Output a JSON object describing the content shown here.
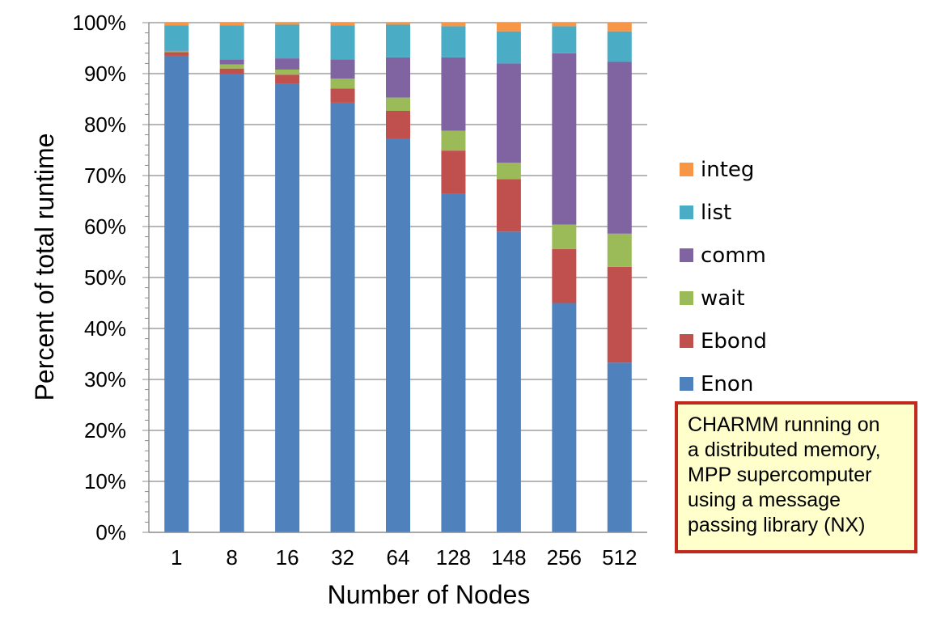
{
  "chart_data": {
    "type": "bar",
    "stacked": true,
    "xlabel": "Number of Nodes",
    "ylabel": "Percent of total runtime",
    "ylim": [
      0,
      100
    ],
    "yticks": [
      "0%",
      "10%",
      "20%",
      "30%",
      "40%",
      "50%",
      "60%",
      "70%",
      "80%",
      "90%",
      "100%"
    ],
    "categories": [
      "1",
      "8",
      "16",
      "32",
      "64",
      "128",
      "148",
      "256",
      "512"
    ],
    "series": [
      {
        "name": "Enon",
        "color": "#4f81bd",
        "values": [
          93.5,
          90.0,
          88.0,
          84.3,
          77.3,
          66.5,
          59.0,
          45.0,
          33.3
        ]
      },
      {
        "name": "Ebond",
        "color": "#c0504d",
        "values": [
          0.7,
          1.0,
          1.8,
          2.8,
          5.4,
          8.4,
          10.3,
          10.6,
          18.8
        ]
      },
      {
        "name": "wait",
        "color": "#9bbb59",
        "values": [
          0.2,
          0.8,
          1.0,
          1.9,
          2.6,
          3.9,
          3.2,
          4.8,
          6.5
        ]
      },
      {
        "name": "comm",
        "color": "#8064a2",
        "values": [
          0.1,
          1.0,
          2.2,
          3.8,
          7.9,
          14.4,
          19.5,
          33.6,
          33.7
        ]
      },
      {
        "name": "list",
        "color": "#4bacc6",
        "values": [
          5.0,
          6.7,
          6.6,
          6.7,
          6.4,
          6.1,
          6.3,
          5.3,
          6.0
        ]
      },
      {
        "name": "integ",
        "color": "#f79646",
        "values": [
          0.5,
          0.5,
          0.4,
          0.5,
          0.4,
          0.7,
          1.7,
          0.7,
          1.7
        ]
      }
    ],
    "legend_position": "right",
    "grid": true
  },
  "annotation": {
    "lines": [
      "CHARMM running on",
      "a distributed memory,",
      "MPP supercomputer",
      "using a  message",
      "passing library (NX)"
    ],
    "border_color": "#c0291f",
    "background_color": "#ffffcc"
  }
}
